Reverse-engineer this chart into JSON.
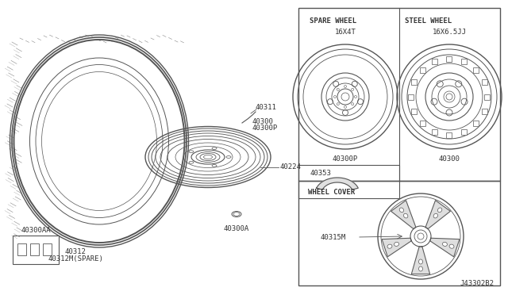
{
  "bg_color": "#ffffff",
  "line_color": "#555555",
  "light_line": "#888888",
  "border_color": "#555555",
  "text_color": "#333333",
  "diagram_id": "J43302B2",
  "parts": {
    "tire_label1": "40312",
    "tire_label2": "40312M(SPARE)",
    "wheel_label1": "40300",
    "wheel_label1b": "40300P",
    "wheel_label2": "40311",
    "wheel_label3": "40224",
    "wheel_label4": "40300A",
    "box_label": "40300AA",
    "spare_wheel_title": "SPARE WHEEL",
    "spare_wheel_size": "16X4T",
    "spare_wheel_part": "40300P",
    "steel_wheel_title": "STEEL WHEEL",
    "steel_wheel_size": "16X6.5JJ",
    "steel_wheel_part": "40300",
    "balance_label": "40353",
    "wheel_cover_title": "WHEEL COVER",
    "wheel_cover_part": "40315M"
  }
}
